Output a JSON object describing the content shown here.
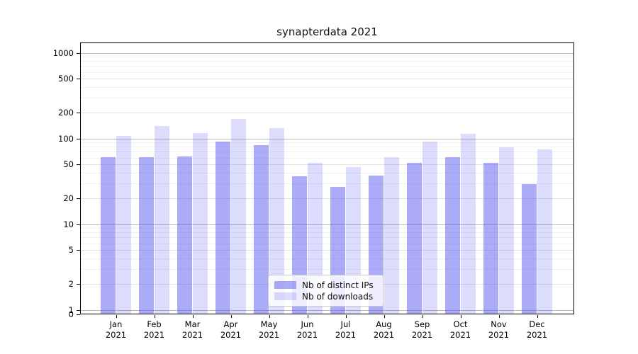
{
  "title": "synapterdata 2021",
  "colors": {
    "bar_base": "#5050f0",
    "ips_alpha": 0.48,
    "downloads_alpha": 0.2,
    "ips_blended_hex": "#ababf8",
    "downloads_blended_hex": "#dcdcfc",
    "grid_major": "#b8b8b8",
    "grid_labeled": "#e3e3e3",
    "grid_minor": "#f1f1f1",
    "axis": "#000000",
    "text": "#111111"
  },
  "y_axis": {
    "tick_values": [
      0,
      1,
      2,
      5,
      10,
      20,
      50,
      100,
      200,
      500,
      1000
    ],
    "tick_labels": [
      "0",
      "1",
      "2",
      "5",
      "10",
      "20",
      "50",
      "100",
      "200",
      "500",
      "1000"
    ]
  },
  "x_axis": {
    "months": [
      "Jan",
      "Feb",
      "Mar",
      "Apr",
      "May",
      "Jun",
      "Jul",
      "Aug",
      "Sep",
      "Oct",
      "Nov",
      "Dec"
    ],
    "year": "2021"
  },
  "legend": {
    "entries": [
      {
        "label": "Nb of distinct IPs",
        "series": "ips"
      },
      {
        "label": "Nb of downloads",
        "series": "downloads"
      }
    ]
  },
  "chart_data": {
    "type": "bar",
    "title": "synapterdata 2021",
    "categories": [
      "Jan 2021",
      "Feb 2021",
      "Mar 2021",
      "Apr 2021",
      "May 2021",
      "Jun 2021",
      "Jul 2021",
      "Aug 2021",
      "Sep 2021",
      "Oct 2021",
      "Nov 2021",
      "Dec 2021"
    ],
    "series": [
      {
        "name": "Nb of distinct IPs",
        "values": [
          60,
          60,
          62,
          92,
          84,
          36,
          27,
          37,
          52,
          60,
          52,
          29
        ]
      },
      {
        "name": "Nb of downloads",
        "values": [
          107,
          140,
          116,
          170,
          132,
          52,
          46,
          60,
          91,
          112,
          79,
          75
        ]
      }
    ],
    "xlabel": "",
    "ylabel": "",
    "yscale": "symlog",
    "yticks": [
      0,
      1,
      2,
      5,
      10,
      20,
      50,
      100,
      200,
      500,
      1000
    ],
    "ylim": [
      0,
      1300
    ],
    "grid": true,
    "legend_position": "lower center"
  }
}
